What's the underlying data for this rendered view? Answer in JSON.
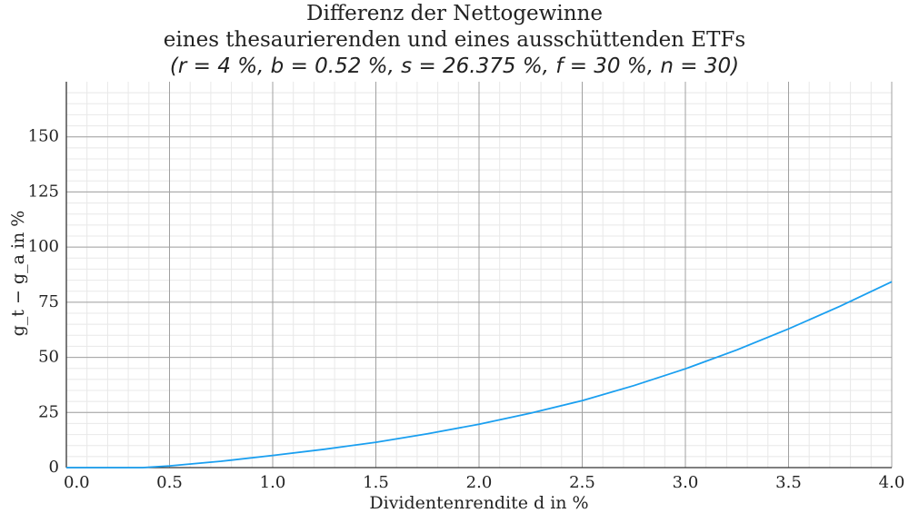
{
  "chart_data": {
    "type": "line",
    "title": [
      "Differenz der Nettogewinne",
      "eines thesaurierenden und eines ausschüttenden ETFs",
      "(r = 4 %, b = 0.52 %, s = 26.375 %, f = 30 %, n = 30)"
    ],
    "xlabel": "Dividentenrendite d in %",
    "ylabel": "g_t − g_a in %",
    "xlim": [
      0,
      4
    ],
    "ylim": [
      0,
      175
    ],
    "xticks": [
      "0.0",
      "0.5",
      "1.0",
      "1.5",
      "2.0",
      "2.5",
      "3.0",
      "3.5",
      "4.0"
    ],
    "yticks": [
      "0",
      "25",
      "50",
      "75",
      "100",
      "125",
      "150"
    ],
    "grid": true,
    "color": "#1a9ff0",
    "x": [
      0,
      0.25,
      0.37,
      0.5,
      0.75,
      1.0,
      1.25,
      1.5,
      1.75,
      2.0,
      2.25,
      2.5,
      2.75,
      3.0,
      3.25,
      3.5,
      3.75,
      4.0
    ],
    "y": [
      0,
      0,
      0,
      0.8,
      2.9,
      5.5,
      8.3,
      11.5,
      15.3,
      19.7,
      24.7,
      30.4,
      37.2,
      44.8,
      53.4,
      62.9,
      73.2,
      84.3
    ]
  }
}
